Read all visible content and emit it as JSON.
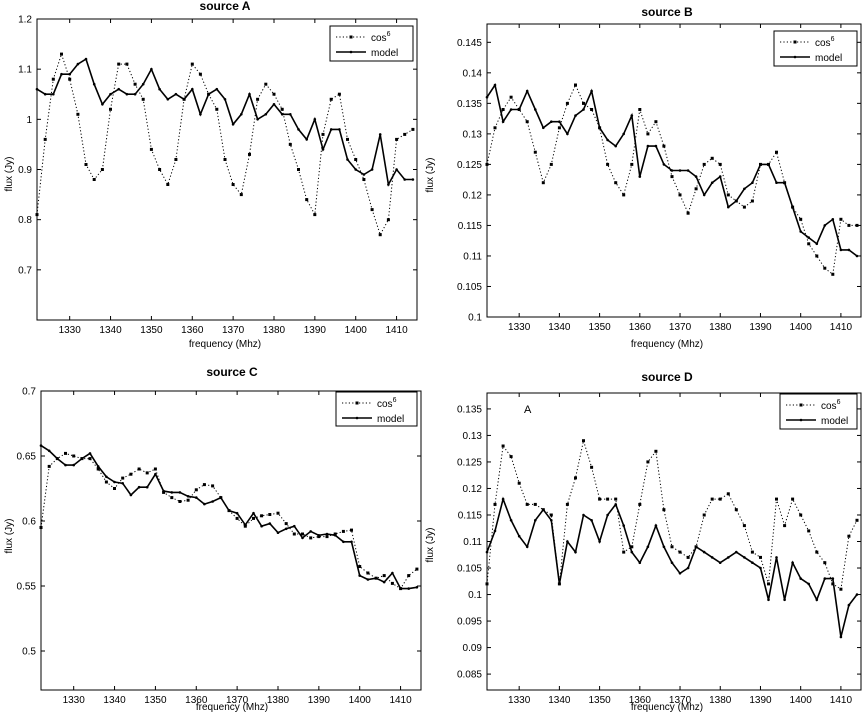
{
  "figure": {
    "panels": [
      {
        "title": "source A",
        "xlabel": "frequency (Mhz)",
        "ylabel": "flux (Jy)",
        "annotation": ""
      },
      {
        "title": "source B",
        "xlabel": "frequency (Mhz)",
        "ylabel": "flux (Jy)",
        "annotation": ""
      },
      {
        "title": "source C",
        "xlabel": "frequency (Mhz)",
        "ylabel": "flux (Jy)",
        "annotation": ""
      },
      {
        "title": "source D",
        "xlabel": "frequency (Mhz)",
        "ylabel": "flux (Jy)",
        "annotation": "A"
      }
    ],
    "legend": {
      "cos_base": "cos",
      "cos_sup": "6",
      "model": "model"
    }
  },
  "chart_data": [
    {
      "type": "line",
      "title": "source A",
      "xlabel": "frequency (Mhz)",
      "ylabel": "flux (Jy)",
      "xlim": [
        1322,
        1415
      ],
      "ylim": [
        0.6,
        1.2
      ],
      "xticks": [
        1330,
        1340,
        1350,
        1360,
        1370,
        1380,
        1390,
        1400,
        1410
      ],
      "yticks": [
        0.7,
        0.8,
        0.9,
        1,
        1.1,
        1.2
      ],
      "grid": false,
      "legend_position": "top-right",
      "x": [
        1322,
        1324,
        1326,
        1328,
        1330,
        1332,
        1334,
        1336,
        1338,
        1340,
        1342,
        1344,
        1346,
        1348,
        1350,
        1352,
        1354,
        1356,
        1358,
        1360,
        1362,
        1364,
        1366,
        1368,
        1370,
        1372,
        1374,
        1376,
        1378,
        1380,
        1382,
        1384,
        1386,
        1388,
        1390,
        1392,
        1394,
        1396,
        1398,
        1400,
        1402,
        1404,
        1406,
        1408,
        1410,
        1412,
        1414
      ],
      "series": [
        {
          "name": "cos^6",
          "style": "dotted",
          "values": [
            0.81,
            0.96,
            1.08,
            1.13,
            1.08,
            1.01,
            0.91,
            0.88,
            0.9,
            1.02,
            1.11,
            1.11,
            1.07,
            1.04,
            0.94,
            0.9,
            0.87,
            0.92,
            1.04,
            1.11,
            1.09,
            1.05,
            1.02,
            0.92,
            0.87,
            0.85,
            0.93,
            1.04,
            1.07,
            1.05,
            1.02,
            0.95,
            0.9,
            0.84,
            0.81,
            0.97,
            1.04,
            1.05,
            0.96,
            0.92,
            0.88,
            0.82,
            0.77,
            0.8,
            0.96,
            0.97,
            0.98
          ]
        },
        {
          "name": "model",
          "style": "solid",
          "values": [
            1.06,
            1.05,
            1.05,
            1.09,
            1.09,
            1.11,
            1.12,
            1.07,
            1.03,
            1.05,
            1.06,
            1.05,
            1.05,
            1.07,
            1.1,
            1.06,
            1.04,
            1.05,
            1.04,
            1.06,
            1.01,
            1.05,
            1.06,
            1.04,
            0.99,
            1.01,
            1.05,
            1.0,
            1.01,
            1.03,
            1.01,
            1.01,
            0.98,
            0.96,
            1.0,
            0.94,
            0.98,
            0.98,
            0.92,
            0.9,
            0.89,
            0.9,
            0.97,
            0.87,
            0.9,
            0.88,
            0.88
          ]
        }
      ]
    },
    {
      "type": "line",
      "title": "source B",
      "xlabel": "frequency (Mhz)",
      "ylabel": "flux (Jy)",
      "xlim": [
        1322,
        1415
      ],
      "ylim": [
        0.1,
        0.148
      ],
      "xticks": [
        1330,
        1340,
        1350,
        1360,
        1370,
        1380,
        1390,
        1400,
        1410
      ],
      "yticks": [
        0.1,
        0.105,
        0.11,
        0.115,
        0.12,
        0.125,
        0.13,
        0.135,
        0.14,
        0.145
      ],
      "grid": false,
      "legend_position": "top-right",
      "x": [
        1322,
        1324,
        1326,
        1328,
        1330,
        1332,
        1334,
        1336,
        1338,
        1340,
        1342,
        1344,
        1346,
        1348,
        1350,
        1352,
        1354,
        1356,
        1358,
        1360,
        1362,
        1364,
        1366,
        1368,
        1370,
        1372,
        1374,
        1376,
        1378,
        1380,
        1382,
        1384,
        1386,
        1388,
        1390,
        1392,
        1394,
        1396,
        1398,
        1400,
        1402,
        1404,
        1406,
        1408,
        1410,
        1412,
        1414
      ],
      "series": [
        {
          "name": "cos^6",
          "style": "dotted",
          "values": [
            0.125,
            0.131,
            0.134,
            0.136,
            0.134,
            0.132,
            0.127,
            0.122,
            0.125,
            0.131,
            0.135,
            0.138,
            0.135,
            0.134,
            0.131,
            0.125,
            0.122,
            0.12,
            0.125,
            0.134,
            0.13,
            0.132,
            0.128,
            0.123,
            0.12,
            0.117,
            0.121,
            0.125,
            0.126,
            0.125,
            0.12,
            0.119,
            0.118,
            0.119,
            0.125,
            0.125,
            0.127,
            0.122,
            0.118,
            0.116,
            0.112,
            0.11,
            0.108,
            0.107,
            0.116,
            0.115,
            0.115
          ]
        },
        {
          "name": "model",
          "style": "solid",
          "values": [
            0.136,
            0.138,
            0.132,
            0.134,
            0.134,
            0.137,
            0.134,
            0.131,
            0.132,
            0.132,
            0.13,
            0.133,
            0.134,
            0.137,
            0.131,
            0.129,
            0.128,
            0.13,
            0.133,
            0.123,
            0.128,
            0.128,
            0.125,
            0.124,
            0.124,
            0.124,
            0.123,
            0.12,
            0.122,
            0.123,
            0.118,
            0.119,
            0.121,
            0.122,
            0.125,
            0.125,
            0.122,
            0.122,
            0.118,
            0.114,
            0.113,
            0.112,
            0.115,
            0.116,
            0.111,
            0.111,
            0.11
          ]
        }
      ]
    },
    {
      "type": "line",
      "title": "source C",
      "xlabel": "frequency (Mhz)",
      "ylabel": "flux (Jy)",
      "xlim": [
        1322,
        1415
      ],
      "ylim": [
        0.47,
        0.7
      ],
      "xticks": [
        1330,
        1340,
        1350,
        1360,
        1370,
        1380,
        1390,
        1400,
        1410
      ],
      "yticks": [
        0.5,
        0.55,
        0.6,
        0.65,
        0.7
      ],
      "grid": false,
      "legend_position": "top-right",
      "x": [
        1322,
        1324,
        1326,
        1328,
        1330,
        1332,
        1334,
        1336,
        1338,
        1340,
        1342,
        1344,
        1346,
        1348,
        1350,
        1352,
        1354,
        1356,
        1358,
        1360,
        1362,
        1364,
        1366,
        1368,
        1370,
        1372,
        1374,
        1376,
        1378,
        1380,
        1382,
        1384,
        1386,
        1388,
        1390,
        1392,
        1394,
        1396,
        1398,
        1400,
        1402,
        1404,
        1406,
        1408,
        1410,
        1412,
        1414
      ],
      "series": [
        {
          "name": "cos^6",
          "style": "dotted",
          "values": [
            0.595,
            0.642,
            0.648,
            0.652,
            0.65,
            0.648,
            0.648,
            0.64,
            0.63,
            0.625,
            0.633,
            0.636,
            0.64,
            0.637,
            0.64,
            0.622,
            0.618,
            0.615,
            0.616,
            0.624,
            0.628,
            0.627,
            0.618,
            0.608,
            0.602,
            0.596,
            0.602,
            0.604,
            0.605,
            0.606,
            0.598,
            0.59,
            0.59,
            0.587,
            0.588,
            0.588,
            0.59,
            0.592,
            0.593,
            0.565,
            0.56,
            0.556,
            0.558,
            0.552,
            0.548,
            0.558,
            0.563
          ]
        },
        {
          "name": "model",
          "style": "solid",
          "values": [
            0.658,
            0.654,
            0.648,
            0.643,
            0.643,
            0.648,
            0.652,
            0.642,
            0.634,
            0.63,
            0.629,
            0.62,
            0.626,
            0.626,
            0.636,
            0.623,
            0.622,
            0.622,
            0.619,
            0.618,
            0.613,
            0.615,
            0.618,
            0.608,
            0.606,
            0.597,
            0.606,
            0.596,
            0.598,
            0.591,
            0.594,
            0.596,
            0.587,
            0.592,
            0.589,
            0.59,
            0.589,
            0.584,
            0.584,
            0.558,
            0.555,
            0.556,
            0.553,
            0.56,
            0.548,
            0.548,
            0.549
          ]
        }
      ]
    },
    {
      "type": "line",
      "title": "source D",
      "xlabel": "frequency (Mhz)",
      "ylabel": "flux (Jy)",
      "xlim": [
        1322,
        1415
      ],
      "ylim": [
        0.082,
        0.138
      ],
      "xticks": [
        1330,
        1340,
        1350,
        1360,
        1370,
        1380,
        1390,
        1400,
        1410
      ],
      "yticks": [
        0.085,
        0.09,
        0.095,
        0.1,
        0.105,
        0.11,
        0.115,
        0.12,
        0.125,
        0.13,
        0.135
      ],
      "grid": false,
      "legend_position": "top-right",
      "x": [
        1322,
        1324,
        1326,
        1328,
        1330,
        1332,
        1334,
        1336,
        1338,
        1340,
        1342,
        1344,
        1346,
        1348,
        1350,
        1352,
        1354,
        1356,
        1358,
        1360,
        1362,
        1364,
        1366,
        1368,
        1370,
        1372,
        1374,
        1376,
        1378,
        1380,
        1382,
        1384,
        1386,
        1388,
        1390,
        1392,
        1394,
        1396,
        1398,
        1400,
        1402,
        1404,
        1406,
        1408,
        1410,
        1412,
        1414
      ],
      "series": [
        {
          "name": "cos^6",
          "style": "dotted",
          "values": [
            0.102,
            0.117,
            0.128,
            0.126,
            0.121,
            0.117,
            0.117,
            0.116,
            0.115,
            0.102,
            0.117,
            0.122,
            0.129,
            0.124,
            0.118,
            0.118,
            0.118,
            0.108,
            0.109,
            0.117,
            0.125,
            0.127,
            0.116,
            0.109,
            0.108,
            0.107,
            0.109,
            0.115,
            0.118,
            0.118,
            0.119,
            0.116,
            0.113,
            0.108,
            0.107,
            0.102,
            0.118,
            0.113,
            0.118,
            0.115,
            0.112,
            0.108,
            0.106,
            0.102,
            0.101,
            0.111,
            0.114
          ]
        },
        {
          "name": "model",
          "style": "solid",
          "values": [
            0.108,
            0.112,
            0.118,
            0.114,
            0.111,
            0.109,
            0.114,
            0.116,
            0.114,
            0.102,
            0.11,
            0.108,
            0.115,
            0.114,
            0.11,
            0.115,
            0.117,
            0.113,
            0.108,
            0.106,
            0.109,
            0.113,
            0.109,
            0.106,
            0.104,
            0.105,
            0.109,
            0.108,
            0.107,
            0.106,
            0.107,
            0.108,
            0.107,
            0.106,
            0.105,
            0.099,
            0.107,
            0.099,
            0.106,
            0.103,
            0.102,
            0.099,
            0.103,
            0.103,
            0.092,
            0.098,
            0.1
          ]
        }
      ]
    }
  ]
}
